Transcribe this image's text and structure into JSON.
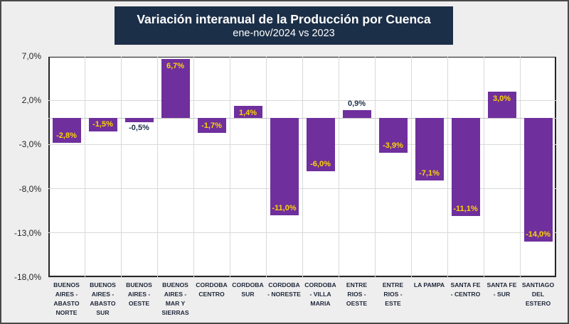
{
  "chart_data": {
    "type": "bar",
    "title": "Variación interanual de la Producción por Cuenca",
    "subtitle": "ene-nov/2024 vs 2023",
    "categories": [
      "BUENOS AIRES - ABASTO NORTE",
      "BUENOS AIRES - ABASTO SUR",
      "BUENOS AIRES - OESTE",
      "BUENOS AIRES - MAR Y SIERRAS",
      "CORDOBA CENTRO",
      "CORDOBA SUR",
      "CORDOBA - NORESTE",
      "CORDOBA - VILLA MARIA",
      "ENTRE RIOS - OESTE",
      "ENTRE RIOS - ESTE",
      "LA PAMPA",
      "SANTA FE - CENTRO",
      "SANTA FE - SUR",
      "SANTIAGO DEL ESTERO"
    ],
    "x_tick_lines": [
      [
        "BUENOS",
        "AIRES -",
        "ABASTO",
        "NORTE"
      ],
      [
        "BUENOS",
        "AIRES -",
        "ABASTO",
        "SUR"
      ],
      [
        "BUENOS",
        "AIRES -",
        "OESTE"
      ],
      [
        "BUENOS",
        "AIRES -",
        "MAR Y",
        "SIERRAS"
      ],
      [
        "CORDOBA",
        "CENTRO"
      ],
      [
        "CORDOBA",
        "SUR"
      ],
      [
        "CORDOBA",
        "- NORESTE"
      ],
      [
        "CORDOBA",
        "- VILLA",
        "MARIA"
      ],
      [
        "ENTRE",
        "RIOS -",
        "OESTE"
      ],
      [
        "ENTRE",
        "RIOS -",
        "ESTE"
      ],
      [
        "LA PAMPA"
      ],
      [
        "SANTA FE",
        "- CENTRO"
      ],
      [
        "SANTA FE",
        "- SUR"
      ],
      [
        "SANTIAGO",
        "DEL",
        "ESTERO"
      ]
    ],
    "values": [
      -2.8,
      -1.5,
      -0.5,
      6.7,
      -1.7,
      1.4,
      -11.0,
      -6.0,
      0.9,
      -3.9,
      -7.1,
      -11.1,
      3.0,
      -14.0
    ],
    "value_labels": [
      "-2,8%",
      "-1,5%",
      "-0,5%",
      "6,7%",
      "-1,7%",
      "1,4%",
      "-11,0%",
      "-6,0%",
      "0,9%",
      "-3,9%",
      "-7,1%",
      "-11,1%",
      "3,0%",
      "-14,0%"
    ],
    "y_ticks": [
      "7,0%",
      "2,0%",
      "-3,0%",
      "-8,0%",
      "-13,0%",
      "-18,0%"
    ],
    "y_tick_values": [
      7,
      2,
      -3,
      -8,
      -13,
      -18
    ],
    "ylim": [
      -18,
      7
    ],
    "grid": true,
    "legend": false,
    "colors": {
      "bar": "#6f2f9d",
      "label_inside": "#ffd400",
      "label_outside": "#1c2f48",
      "title_bg": "#1c2f48",
      "title_text": "#ffffff",
      "background": "#efeeee",
      "plot_bg": "#ffffff",
      "gridline": "#d9d9d9"
    }
  }
}
